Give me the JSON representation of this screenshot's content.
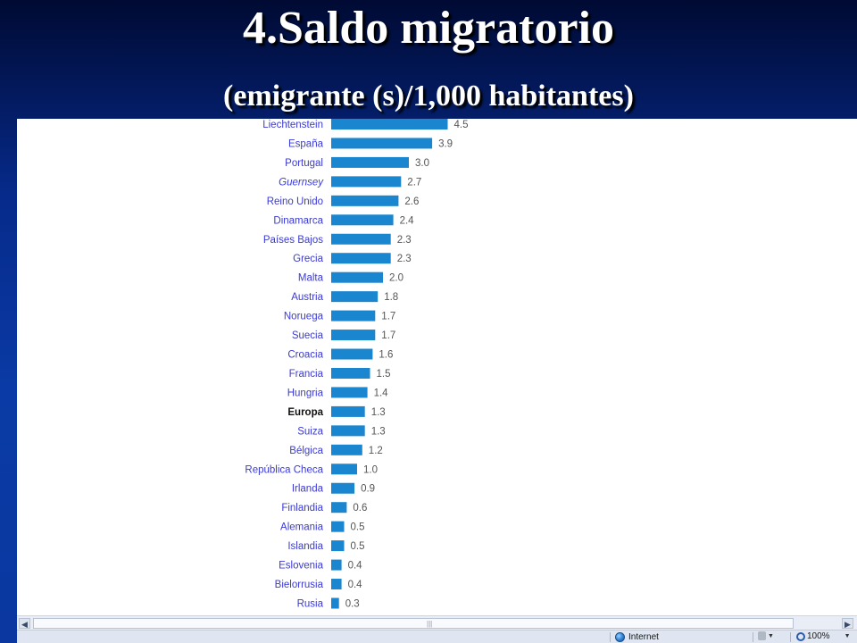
{
  "slide": {
    "title": "4.Saldo migratorio",
    "subtitle": "(emigrante  (s)/1,000 habitantes)"
  },
  "colors": {
    "bar": "#1a86d0",
    "label_link": "#3a3ad6",
    "label_emphasis": "#111111",
    "value": "#555555"
  },
  "chart_data": {
    "type": "bar",
    "orientation": "horizontal",
    "title": "",
    "xlabel": "",
    "ylabel": "",
    "grid": false,
    "emphasized_category": "Europa",
    "italic_category": "Guernsey",
    "categories": [
      "Liechtenstein",
      "España",
      "Portugal",
      "Guernsey",
      "Reino Unido",
      "Dinamarca",
      "Países Bajos",
      "Grecia",
      "Malta",
      "Austria",
      "Noruega",
      "Suecia",
      "Croacia",
      "Francia",
      "Hungria",
      "Europa",
      "Suiza",
      "Bélgica",
      "República Checa",
      "Irlanda",
      "Finlandia",
      "Alemania",
      "Islandia",
      "Eslovenia",
      "Bielorrusia",
      "Rusia"
    ],
    "values": [
      4.5,
      3.9,
      3.0,
      2.7,
      2.6,
      2.4,
      2.3,
      2.3,
      2.0,
      1.8,
      1.7,
      1.7,
      1.6,
      1.5,
      1.4,
      1.3,
      1.3,
      1.2,
      1.0,
      0.9,
      0.6,
      0.5,
      0.5,
      0.4,
      0.4,
      0.3
    ],
    "value_labels": [
      "4.5",
      "3.9",
      "3.0",
      "2.7",
      "2.6",
      "2.4",
      "2.3",
      "2.3",
      "2.0",
      "1.8",
      "1.7",
      "1.7",
      "1.6",
      "1.5",
      "1.4",
      "1.3",
      "1.3",
      "1.2",
      "1.0",
      "0.9",
      "0.6",
      "0.5",
      "0.5",
      "0.4",
      "0.4",
      "0.3"
    ]
  },
  "browser": {
    "scroll_grip": "|||",
    "scroll_left": "◀",
    "scroll_right": "▶",
    "zone_label": "Internet",
    "zoom_label": "100%",
    "dropdown_arrow": "▼",
    "icons": [
      "globe-icon",
      "lock-icon",
      "zoom-icon"
    ]
  }
}
